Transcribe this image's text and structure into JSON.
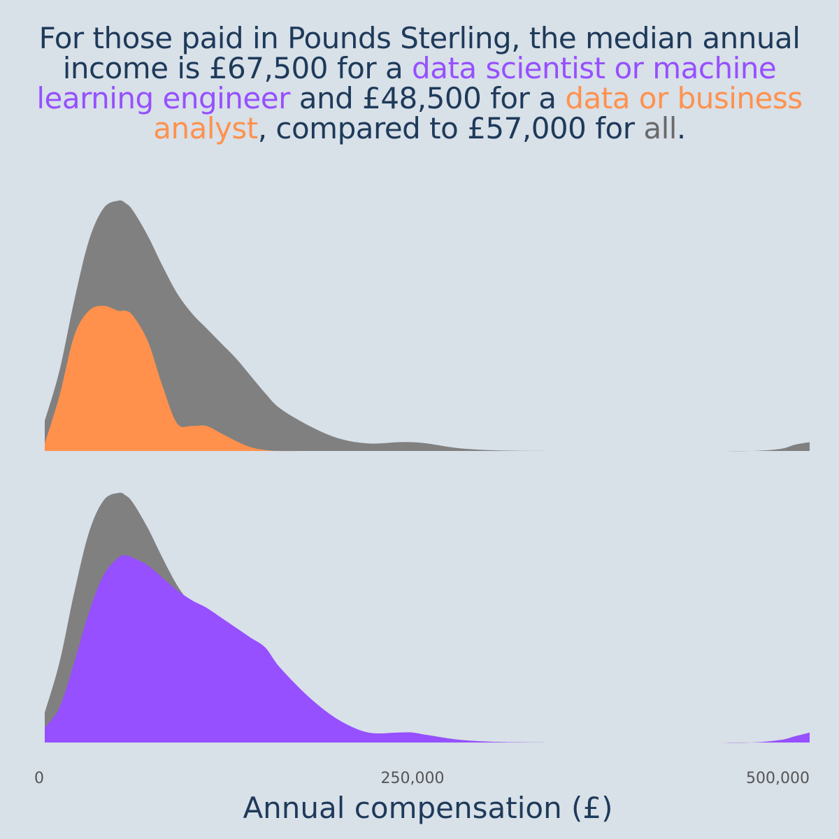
{
  "title": {
    "part1": "For those paid in Pounds Sterling, the median annual income is £67,500 for a ",
    "ds_label": "data scientist or machine learning engineer",
    "part2": " and £48,500 for a ",
    "da_label": "data or business analyst",
    "part3": ", compared to £57,000 for ",
    "all_label": "all",
    "part4": "."
  },
  "chart_data": {
    "type": "area",
    "xlabel": "Annual compensation (£)",
    "xlim": [
      0,
      520000
    ],
    "x_ticks": [
      {
        "value": 0,
        "label": "0"
      },
      {
        "value": 250000,
        "label": "250,000"
      },
      {
        "value": 500000,
        "label": "500,000"
      }
    ],
    "colors": {
      "all": "#808080",
      "data_scientist": "#9650ff",
      "data_analyst": "#ff914d"
    },
    "x": [
      0,
      10000,
      20000,
      30000,
      40000,
      50000,
      55000,
      60000,
      70000,
      80000,
      90000,
      100000,
      110000,
      120000,
      130000,
      140000,
      150000,
      160000,
      180000,
      200000,
      220000,
      240000,
      250000,
      260000,
      280000,
      300000,
      320000,
      350000,
      400000,
      450000,
      480000,
      500000,
      510000,
      520000
    ],
    "panels": [
      {
        "name": "data-analyst-panel",
        "series": [
          {
            "key": "all",
            "values": [
              0.12,
              0.32,
              0.6,
              0.84,
              0.97,
              1.0,
              0.99,
              0.96,
              0.86,
              0.74,
              0.63,
              0.55,
              0.49,
              0.43,
              0.37,
              0.3,
              0.23,
              0.17,
              0.1,
              0.05,
              0.03,
              0.035,
              0.035,
              0.03,
              0.012,
              0.004,
              0.001,
              0.0,
              0.0,
              0.0,
              0.0,
              0.008,
              0.025,
              0.035
            ]
          },
          {
            "key": "data_analyst",
            "values": [
              0.03,
              0.22,
              0.46,
              0.56,
              0.58,
              0.56,
              0.56,
              0.54,
              0.44,
              0.26,
              0.11,
              0.1,
              0.1,
              0.07,
              0.04,
              0.015,
              0.004,
              0.0,
              0.0,
              0.0,
              0.0,
              0.0,
              0.0,
              0.0,
              0.0,
              0.0,
              0.0,
              0.0,
              0.0,
              0.0,
              0.0,
              0.0,
              0.0,
              0.0
            ]
          }
        ]
      },
      {
        "name": "data-scientist-panel",
        "series": [
          {
            "key": "all",
            "values": [
              0.12,
              0.32,
              0.6,
              0.84,
              0.97,
              1.0,
              0.99,
              0.96,
              0.86,
              0.74,
              0.63,
              0.55,
              0.49,
              0.43,
              0.37,
              0.3,
              0.23,
              0.17,
              0.1,
              0.05,
              0.03,
              0.035,
              0.035,
              0.03,
              0.012,
              0.004,
              0.001,
              0.0,
              0.0,
              0.0,
              0.0,
              0.008,
              0.025,
              0.035
            ]
          },
          {
            "key": "data_scientist",
            "values": [
              0.06,
              0.14,
              0.32,
              0.52,
              0.67,
              0.74,
              0.75,
              0.74,
              0.71,
              0.66,
              0.61,
              0.57,
              0.54,
              0.5,
              0.46,
              0.42,
              0.38,
              0.3,
              0.18,
              0.09,
              0.04,
              0.04,
              0.04,
              0.03,
              0.012,
              0.004,
              0.001,
              0.0,
              0.0,
              0.0,
              0.0,
              0.01,
              0.025,
              0.04
            ]
          }
        ]
      }
    ]
  }
}
